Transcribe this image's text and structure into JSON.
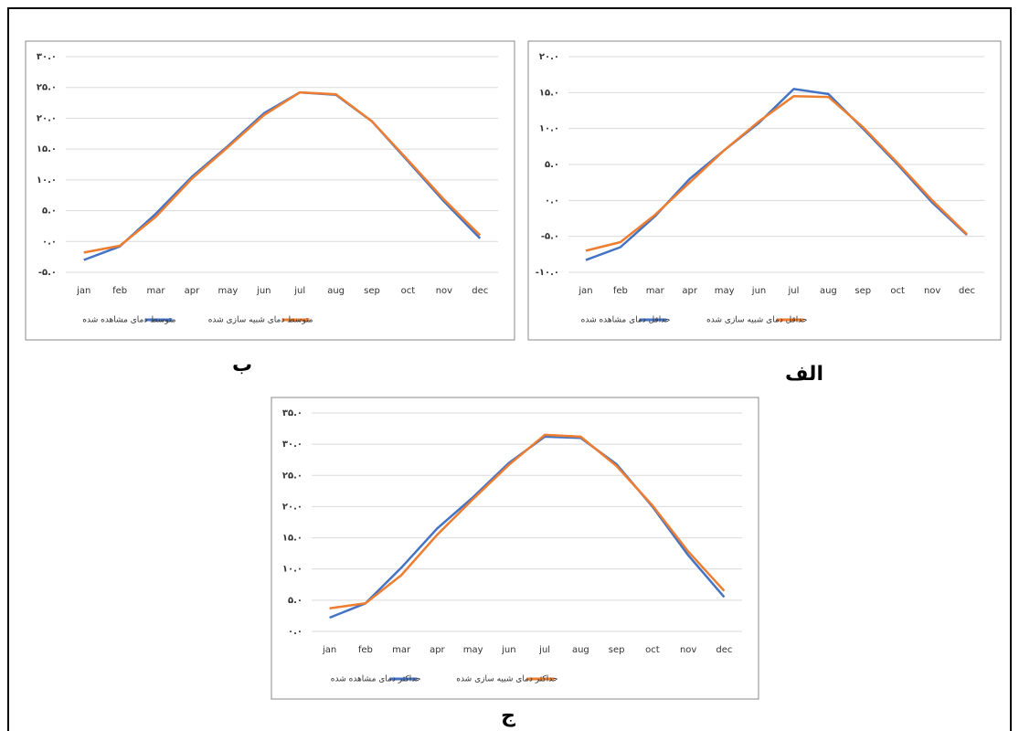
{
  "chart_data": [
    {
      "type": "line",
      "panel_label": "ب",
      "categories": [
        "jan",
        "feb",
        "mar",
        "apr",
        "may",
        "jun",
        "jul",
        "aug",
        "sep",
        "oct",
        "nov",
        "dec"
      ],
      "series": [
        {
          "name": "متوسط دمای مشاهده شده",
          "color": "#4472c4",
          "values": [
            -3.0,
            -0.8,
            4.5,
            10.5,
            15.5,
            20.8,
            24.2,
            23.8,
            19.5,
            13.0,
            6.5,
            0.5
          ]
        },
        {
          "name": "متوسط دمای شبیه سازی شده",
          "color": "#ed7d31",
          "values": [
            -1.8,
            -0.7,
            4.0,
            10.2,
            15.3,
            20.5,
            24.2,
            23.9,
            19.5,
            13.2,
            6.8,
            1.0
          ]
        }
      ],
      "ylim": [
        -5,
        30
      ],
      "yticks": [
        {
          "value": -5,
          "label": "-۵.۰"
        },
        {
          "value": 0,
          "label": "۰.۰"
        },
        {
          "value": 5,
          "label": "۵.۰"
        },
        {
          "value": 10,
          "label": "۱۰.۰"
        },
        {
          "value": 15,
          "label": "۱۵.۰"
        },
        {
          "value": 20,
          "label": "۲۰.۰"
        },
        {
          "value": 25,
          "label": "۲۵.۰"
        },
        {
          "value": 30,
          "label": "۳۰.۰"
        }
      ],
      "grid": true
    },
    {
      "type": "line",
      "panel_label": "الف",
      "categories": [
        "jan",
        "feb",
        "mar",
        "apr",
        "may",
        "jun",
        "jul",
        "aug",
        "sep",
        "oct",
        "nov",
        "dec"
      ],
      "series": [
        {
          "name": "حداقل دمای مشاهده شده",
          "color": "#4472c4",
          "values": [
            -8.3,
            -6.5,
            -2.2,
            3.0,
            7.0,
            10.8,
            15.5,
            14.8,
            10.0,
            5.0,
            -0.3,
            -4.8
          ]
        },
        {
          "name": "حداقل دمای شبیه سازی شده",
          "color": "#ed7d31",
          "values": [
            -7.0,
            -5.8,
            -2.0,
            2.5,
            7.0,
            11.0,
            14.5,
            14.4,
            10.2,
            5.2,
            0.0,
            -4.7
          ]
        }
      ],
      "ylim": [
        -10,
        20
      ],
      "yticks": [
        {
          "value": -10,
          "label": "-۱۰.۰"
        },
        {
          "value": -5,
          "label": "-۵.۰"
        },
        {
          "value": 0,
          "label": "۰.۰"
        },
        {
          "value": 5,
          "label": "۵.۰"
        },
        {
          "value": 10,
          "label": "۱۰.۰"
        },
        {
          "value": 15,
          "label": "۱۵.۰"
        },
        {
          "value": 20,
          "label": "۲۰.۰"
        }
      ],
      "grid": true
    },
    {
      "type": "line",
      "panel_label": "ج",
      "categories": [
        "jan",
        "feb",
        "mar",
        "apr",
        "may",
        "jun",
        "jul",
        "aug",
        "sep",
        "oct",
        "nov",
        "dec"
      ],
      "series": [
        {
          "name": "حداکثر دمای مشاهده شده",
          "color": "#4472c4",
          "values": [
            2.2,
            4.5,
            10.2,
            16.5,
            21.5,
            27.0,
            31.2,
            31.0,
            26.8,
            20.0,
            12.2,
            5.5
          ]
        },
        {
          "name": "حداکثر دمای شبیه سازی شده",
          "color": "#ed7d31",
          "values": [
            3.7,
            4.5,
            9.0,
            15.5,
            21.2,
            26.7,
            31.5,
            31.2,
            26.5,
            20.2,
            12.8,
            6.5
          ]
        }
      ],
      "ylim": [
        0,
        35
      ],
      "yticks": [
        {
          "value": 0,
          "label": "۰.۰"
        },
        {
          "value": 5,
          "label": "۵.۰"
        },
        {
          "value": 10,
          "label": "۱۰.۰"
        },
        {
          "value": 15,
          "label": "۱۵.۰"
        },
        {
          "value": 20,
          "label": "۲۰.۰"
        },
        {
          "value": 25,
          "label": "۲۵.۰"
        },
        {
          "value": 30,
          "label": "۳۰.۰"
        },
        {
          "value": 35,
          "label": "۳۵.۰"
        }
      ],
      "grid": true
    }
  ]
}
